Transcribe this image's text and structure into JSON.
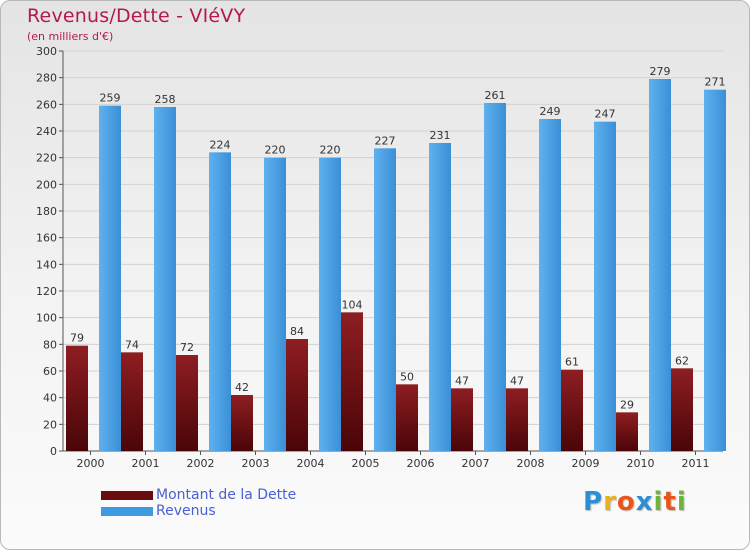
{
  "header": {
    "title": "Revenus/Dette - VIéVY",
    "subtitle": "(en milliers d'€)"
  },
  "logo": {
    "letters": [
      "P",
      "r",
      "o",
      "x",
      "i",
      "t",
      "i"
    ],
    "colors": [
      "#2a8fd6",
      "#e8b11c",
      "#e8561c",
      "#2a8fd6",
      "#6fb43a",
      "#e8561c",
      "#6fb43a"
    ]
  },
  "colors": {
    "dette": "#6b0d10",
    "revenus": "#3f9be0"
  },
  "chart_data": {
    "type": "bar",
    "title": "Revenus/Dette - VIéVY",
    "ylabel": "(en milliers d'€)",
    "categories": [
      "2000",
      "2001",
      "2002",
      "2003",
      "2004",
      "2005",
      "2006",
      "2007",
      "2008",
      "2009",
      "2010",
      "2011"
    ],
    "series": [
      {
        "name": "Montant de la Dette",
        "values": [
          79,
          74,
          72,
          42,
          84,
          104,
          50,
          47,
          47,
          61,
          29,
          62
        ]
      },
      {
        "name": "Revenus",
        "values": [
          259,
          258,
          224,
          220,
          220,
          227,
          231,
          261,
          249,
          247,
          279,
          271
        ]
      }
    ],
    "ylim": [
      0,
      300
    ],
    "yticks": [
      0,
      20,
      40,
      60,
      80,
      100,
      120,
      140,
      160,
      180,
      200,
      220,
      240,
      260,
      280,
      300
    ],
    "grid": true,
    "legend": "bottom-left"
  }
}
